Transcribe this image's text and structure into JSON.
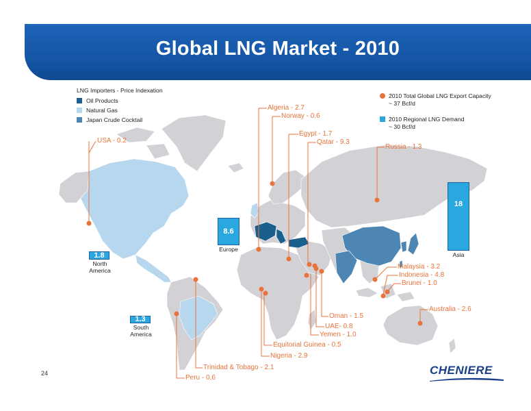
{
  "title": "Global LNG Market - 2010",
  "legend": {
    "title": "LNG Importers - Price Indexation",
    "items": [
      {
        "label": "Oil Products",
        "color": "#1b5f8c"
      },
      {
        "label": "Natural Gas",
        "color": "#b7d7ee"
      },
      {
        "label": "Japan Crude Cocktail",
        "color": "#4d86b3"
      }
    ]
  },
  "right_legend": {
    "export_label": "2010 Total Global LNG Export Capacity",
    "export_value": "~ 37 Bcf/d",
    "export_color": "#e8733a",
    "demand_label": "2010 Regional LNG Demand",
    "demand_value": "~ 30 Bcf/d",
    "demand_color": "#2aa7df"
  },
  "regional_demand": [
    {
      "region": "North America",
      "value": "1.8"
    },
    {
      "region": "South America",
      "value": "1.3"
    },
    {
      "region": "Europe",
      "value": "8.6"
    },
    {
      "region": "Asia",
      "value": "18"
    }
  ],
  "exporters": [
    {
      "name": "USA",
      "value": "0.2",
      "label": "USA - 0.2"
    },
    {
      "name": "Algeria",
      "value": "2.7",
      "label": "Algeria - 2.7"
    },
    {
      "name": "Norway",
      "value": "0.6",
      "label": "Norway - 0.6"
    },
    {
      "name": "Egypt",
      "value": "1.7",
      "label": "Egypt - 1.7"
    },
    {
      "name": "Qatar",
      "value": "9.3",
      "label": "Qatar - 9.3"
    },
    {
      "name": "Russia",
      "value": "1.3",
      "label": "Russia - 1.3"
    },
    {
      "name": "Malaysia",
      "value": "3.2",
      "label": "Malaysia - 3.2"
    },
    {
      "name": "Indonesia",
      "value": "4.8",
      "label": "Indonesia - 4.8"
    },
    {
      "name": "Brunei",
      "value": "1.0",
      "label": "Brunei - 1.0"
    },
    {
      "name": "Australia",
      "value": "2.6",
      "label": "Australia - 2.6"
    },
    {
      "name": "Oman",
      "value": "1.5",
      "label": "Oman - 1.5"
    },
    {
      "name": "UAE",
      "value": "0.8",
      "label": "UAE- 0.8"
    },
    {
      "name": "Yemen",
      "value": "1.0",
      "label": "Yemen - 1.0"
    },
    {
      "name": "Equitorial Guinea",
      "value": "0.5",
      "label": "Equitorial Guinea - 0.5"
    },
    {
      "name": "Nigeria",
      "value": "2.9",
      "label": "Nigeria - 2.9"
    },
    {
      "name": "Trinidad & Tobago",
      "value": "2.1",
      "label": "Trinidad & Tobago - 2.1"
    },
    {
      "name": "Peru",
      "value": "0.6",
      "label": "Peru - 0.6"
    }
  ],
  "page_number": "24",
  "logo_text": "CHENIERE",
  "colors": {
    "header": "#1556a6",
    "land": "#d2d2d6",
    "border": "#ffffff",
    "callout": "#e8733a",
    "demand_fill": "#2aa7df"
  }
}
